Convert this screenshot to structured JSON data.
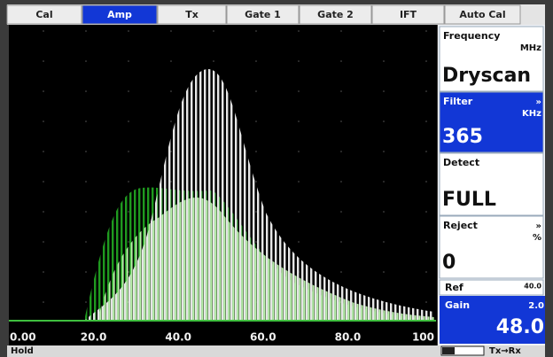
{
  "tabs": [
    {
      "label": "Cal",
      "selected": false
    },
    {
      "label": "Amp",
      "selected": true
    },
    {
      "label": "Tx",
      "selected": false
    },
    {
      "label": "Gate 1",
      "selected": false
    },
    {
      "label": "Gate 2",
      "selected": false
    },
    {
      "label": "IFT",
      "selected": false
    },
    {
      "label": "Auto Cal",
      "selected": false
    }
  ],
  "params": [
    {
      "label": "Frequency",
      "unit": "MHz",
      "value": "Dryscan",
      "selected": false
    },
    {
      "label": "Filter",
      "indicator": "»",
      "unit": "KHz",
      "value": "365",
      "selected": true
    },
    {
      "label": "Detect",
      "value": "FULL",
      "selected": false
    },
    {
      "label": "Reject",
      "indicator": "»",
      "unit": "%",
      "value": "0",
      "selected": false
    }
  ],
  "ref": {
    "label": "Ref",
    "value": "40.0"
  },
  "gain": {
    "label": "Gain",
    "step": "2.0",
    "value": "48.0"
  },
  "axis_labels": [
    "0.00",
    "20.0",
    "40.0",
    "60.0",
    "80.0",
    "100"
  ],
  "status": {
    "mode": "Hold",
    "connection": "Tx→Rx"
  }
}
